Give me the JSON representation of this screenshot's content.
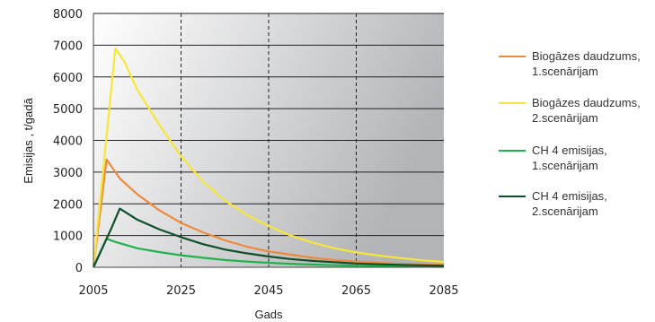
{
  "chart_data": {
    "type": "line",
    "title": "",
    "xlabel": "Gads",
    "ylabel": "Emisijas , t/gadā",
    "xlim": [
      2005,
      2085
    ],
    "ylim": [
      0,
      8000
    ],
    "x_ticks": [
      "2005",
      "2025",
      "2045",
      "2065",
      "2085"
    ],
    "y_ticks": [
      "0",
      "1000",
      "2000",
      "3000",
      "4000",
      "5000",
      "6000",
      "7000",
      "8000"
    ],
    "grid": "horizontal solid, vertical dashed at 2025, 2045, 2065",
    "legend_position": "right",
    "series": [
      {
        "name_lines": [
          "Biogāzes daudzums,",
          "1.scenārijam"
        ],
        "color": "#ee8a3c",
        "x": [
          2005,
          2008,
          2011,
          2015,
          2020,
          2025,
          2030,
          2035,
          2040,
          2045,
          2050,
          2055,
          2060,
          2065,
          2070,
          2075,
          2080,
          2085
        ],
        "y": [
          0,
          3400,
          2800,
          2300,
          1800,
          1400,
          1100,
          850,
          650,
          500,
          400,
          300,
          230,
          180,
          140,
          110,
          90,
          70
        ]
      },
      {
        "name_lines": [
          "Biogāzes daudzums,",
          "2.scenārijam"
        ],
        "color": "#f7e63a",
        "x": [
          2005,
          2010,
          2012,
          2015,
          2020,
          2025,
          2030,
          2035,
          2040,
          2045,
          2050,
          2055,
          2060,
          2065,
          2070,
          2075,
          2080,
          2085
        ],
        "y": [
          0,
          6900,
          6500,
          5600,
          4500,
          3500,
          2700,
          2100,
          1650,
          1300,
          1000,
          780,
          600,
          470,
          370,
          290,
          220,
          170
        ]
      },
      {
        "name_lines": [
          "CH 4 emisijas,",
          "1.scenārijam"
        ],
        "color": "#22b24c",
        "x": [
          2005,
          2008,
          2010,
          2015,
          2020,
          2025,
          2030,
          2035,
          2040,
          2045,
          2050,
          2055,
          2060,
          2065,
          2070,
          2075,
          2080,
          2085
        ],
        "y": [
          0,
          900,
          800,
          600,
          480,
          380,
          300,
          230,
          180,
          140,
          110,
          85,
          65,
          50,
          40,
          30,
          25,
          20
        ]
      },
      {
        "name_lines": [
          "CH 4 emisijas,",
          "2.scenārijam"
        ],
        "color": "#0f4f2a",
        "x": [
          2005,
          2009,
          2011,
          2015,
          2020,
          2025,
          2030,
          2035,
          2040,
          2045,
          2050,
          2055,
          2060,
          2065,
          2070,
          2075,
          2080,
          2085
        ],
        "y": [
          0,
          1200,
          1850,
          1500,
          1200,
          950,
          730,
          560,
          440,
          340,
          260,
          200,
          160,
          120,
          95,
          75,
          60,
          45
        ]
      }
    ]
  },
  "colors": {
    "plot_bg_left": "#ffffff",
    "plot_bg_right": "#b3b4b7",
    "grid": "#222222"
  }
}
